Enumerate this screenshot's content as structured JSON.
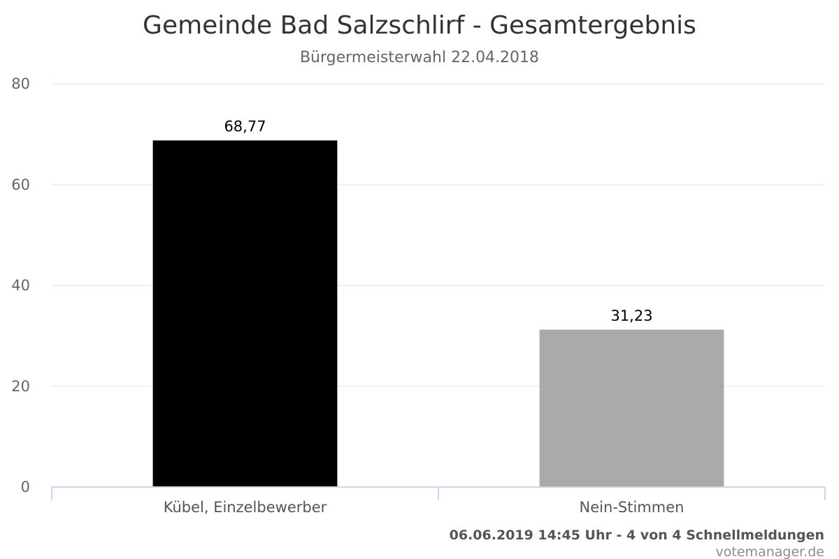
{
  "chart_data": {
    "type": "bar",
    "title": "Gemeinde Bad Salzschlirf - Gesamtergebnis",
    "subtitle": "Bürgermeisterwahl 22.04.2018",
    "categories": [
      "Kübel, Einzelbewerber",
      "Nein-Stimmen"
    ],
    "values": [
      68.77,
      31.23
    ],
    "data_labels": [
      "68,77",
      "31,23"
    ],
    "bar_colors": [
      "#000000",
      "#aaaaaa"
    ],
    "ylim": [
      0,
      80
    ],
    "yticks": [
      0,
      20,
      40,
      60,
      80
    ],
    "grid": true,
    "legend": "none",
    "xlabel": "",
    "ylabel": ""
  },
  "footer": {
    "status": "06.06.2019 14:45 Uhr - 4 von 4 Schnellmeldungen",
    "credit": "votemanager.de"
  },
  "colors": {
    "grid": "#e6e6e6",
    "axis": "#ccd6eb"
  }
}
